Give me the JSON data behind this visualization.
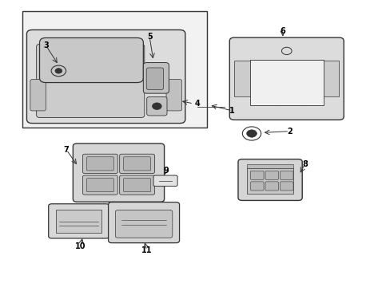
{
  "bg_color": "#ffffff",
  "line_color": "#333333",
  "label_color": "#000000",
  "box_fill": "#f0f0f0",
  "part_fill": "#e0e0e0",
  "part_fill2": "#d0d0d0",
  "part_fill3": "#c8c8c8"
}
